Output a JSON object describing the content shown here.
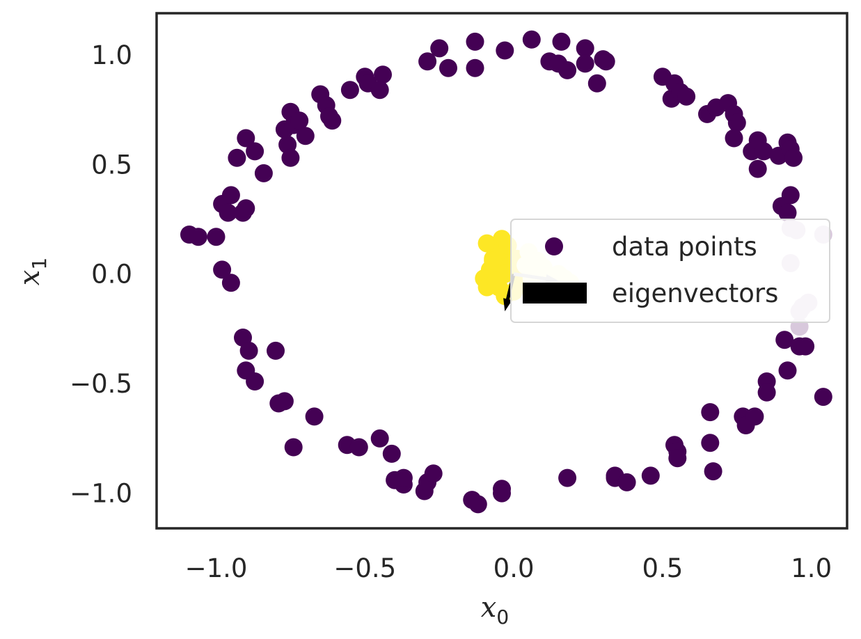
{
  "chart_data": {
    "type": "scatter",
    "title": "",
    "xlabel": "x",
    "xlabel_sub": "0",
    "ylabel": "x",
    "ylabel_sub": "1",
    "xlim": [
      -1.2,
      1.12
    ],
    "ylim": [
      -1.16,
      1.19
    ],
    "x_ticks": [
      -1.0,
      -0.5,
      0.0,
      0.5,
      1.0
    ],
    "x_tick_labels": [
      "−1.0",
      "−0.5",
      "0.0",
      "0.5",
      "1.0"
    ],
    "y_ticks": [
      -1.0,
      -0.5,
      0.0,
      0.5,
      1.0
    ],
    "y_tick_labels": [
      "−1.0",
      "−0.5",
      "0.0",
      "0.5",
      "1.0"
    ],
    "grid": false,
    "legend": {
      "placement": "center-right",
      "entries": [
        "data points",
        "eigenvectors"
      ]
    },
    "colors": {
      "outer": "#440154",
      "core": "#fde725",
      "pale_yellow": "#fffbd0",
      "pale_purple": "#d8c8dc",
      "axes": "#262626",
      "arrow": "#000000",
      "arrow_light": "#c8c8c8"
    },
    "series": [
      {
        "group": "outer",
        "points": [
          [
            -1.09,
            0.18
          ],
          [
            -1.06,
            0.17
          ],
          [
            -1.0,
            0.17
          ],
          [
            -0.98,
            0.02
          ],
          [
            -0.95,
            -0.04
          ],
          [
            -0.98,
            0.32
          ],
          [
            -0.95,
            0.36
          ],
          [
            -0.96,
            0.28
          ],
          [
            -0.91,
            0.28
          ],
          [
            -0.9,
            0.3
          ],
          [
            -0.93,
            0.53
          ],
          [
            -0.9,
            0.62
          ],
          [
            -0.87,
            0.56
          ],
          [
            -0.84,
            0.46
          ],
          [
            -0.77,
            0.66
          ],
          [
            -0.76,
            0.59
          ],
          [
            -0.75,
            0.53
          ],
          [
            -0.75,
            0.74
          ],
          [
            -0.74,
            0.68
          ],
          [
            -0.72,
            0.7
          ],
          [
            -0.7,
            0.63
          ],
          [
            -0.65,
            0.82
          ],
          [
            -0.63,
            0.77
          ],
          [
            -0.62,
            0.72
          ],
          [
            -0.61,
            0.7
          ],
          [
            -0.55,
            0.84
          ],
          [
            -0.5,
            0.9
          ],
          [
            -0.49,
            0.87
          ],
          [
            -0.44,
            0.91
          ],
          [
            -0.45,
            0.84
          ],
          [
            -0.29,
            0.97
          ],
          [
            -0.25,
            1.03
          ],
          [
            -0.22,
            0.94
          ],
          [
            -0.13,
            1.06
          ],
          [
            -0.13,
            0.94
          ],
          [
            -0.03,
            1.02
          ],
          [
            0.06,
            1.07
          ],
          [
            0.12,
            0.97
          ],
          [
            0.15,
            0.96
          ],
          [
            0.16,
            1.06
          ],
          [
            0.18,
            0.93
          ],
          [
            0.24,
            1.03
          ],
          [
            0.24,
            0.96
          ],
          [
            0.28,
            0.87
          ],
          [
            0.3,
            0.98
          ],
          [
            0.31,
            0.97
          ],
          [
            0.5,
            0.9
          ],
          [
            0.53,
            0.8
          ],
          [
            0.54,
            0.87
          ],
          [
            0.56,
            0.83
          ],
          [
            0.58,
            0.81
          ],
          [
            0.65,
            0.73
          ],
          [
            0.68,
            0.76
          ],
          [
            0.72,
            0.78
          ],
          [
            0.74,
            0.73
          ],
          [
            0.75,
            0.69
          ],
          [
            0.74,
            0.62
          ],
          [
            0.8,
            0.56
          ],
          [
            0.82,
            0.61
          ],
          [
            0.84,
            0.56
          ],
          [
            0.82,
            0.48
          ],
          [
            0.89,
            0.54
          ],
          [
            0.92,
            0.6
          ],
          [
            0.93,
            0.57
          ],
          [
            0.94,
            0.53
          ],
          [
            0.93,
            0.36
          ],
          [
            0.9,
            0.31
          ],
          [
            0.92,
            0.28
          ],
          [
            -0.91,
            -0.29
          ],
          [
            -0.89,
            -0.35
          ],
          [
            -0.9,
            -0.44
          ],
          [
            -0.87,
            -0.49
          ],
          [
            -0.8,
            -0.35
          ],
          [
            -0.79,
            -0.59
          ],
          [
            -0.77,
            -0.58
          ],
          [
            -0.74,
            -0.79
          ],
          [
            -0.67,
            -0.65
          ],
          [
            -0.56,
            -0.78
          ],
          [
            -0.52,
            -0.79
          ],
          [
            -0.45,
            -0.75
          ],
          [
            -0.41,
            -0.82
          ],
          [
            -0.4,
            -0.94
          ],
          [
            -0.37,
            -0.96
          ],
          [
            -0.37,
            -0.93
          ],
          [
            -0.3,
            -0.99
          ],
          [
            -0.29,
            -0.95
          ],
          [
            -0.27,
            -0.91
          ],
          [
            -0.14,
            -1.03
          ],
          [
            -0.12,
            -1.05
          ],
          [
            -0.04,
            -0.98
          ],
          [
            -0.04,
            -1.0
          ],
          [
            0.18,
            -0.93
          ],
          [
            0.34,
            -0.92
          ],
          [
            0.34,
            -0.93
          ],
          [
            0.38,
            -0.95
          ],
          [
            0.46,
            -0.92
          ],
          [
            0.54,
            -0.78
          ],
          [
            0.55,
            -0.81
          ],
          [
            0.55,
            -0.84
          ],
          [
            0.66,
            -0.63
          ],
          [
            0.66,
            -0.77
          ],
          [
            0.67,
            -0.9
          ],
          [
            0.77,
            -0.65
          ],
          [
            0.78,
            -0.69
          ],
          [
            0.81,
            -0.65
          ],
          [
            0.85,
            -0.49
          ],
          [
            0.85,
            -0.54
          ],
          [
            0.91,
            -0.3
          ],
          [
            0.92,
            -0.44
          ],
          [
            0.96,
            -0.33
          ],
          [
            0.98,
            -0.33
          ],
          [
            1.04,
            -0.56
          ]
        ]
      },
      {
        "group": "core",
        "points": [
          [
            -0.09,
            0.14
          ],
          [
            -0.04,
            0.16
          ],
          [
            -0.05,
            0.1
          ],
          [
            -0.07,
            0.07
          ],
          [
            -0.06,
            0.03
          ],
          [
            -0.08,
            0.02
          ],
          [
            -0.1,
            -0.02
          ],
          [
            -0.09,
            -0.06
          ],
          [
            -0.05,
            -0.06
          ],
          [
            -0.03,
            -0.1
          ],
          [
            -0.02,
            0.05
          ],
          [
            -0.03,
            0.0
          ],
          [
            0.0,
            -0.08
          ],
          [
            -0.06,
            -0.03
          ],
          [
            -0.04,
            0.11
          ],
          [
            0.01,
            0.07
          ],
          [
            0.02,
            -0.03
          ],
          [
            -0.02,
            0.13
          ],
          [
            0.0,
            0.02
          ],
          [
            -0.07,
            0.06
          ]
        ]
      },
      {
        "group": "pale_yellow",
        "points": [
          [
            0.05,
            0.1
          ],
          [
            0.08,
            0.06
          ],
          [
            0.1,
            0.03
          ],
          [
            0.13,
            -0.01
          ],
          [
            0.15,
            0.0
          ],
          [
            0.17,
            -0.02
          ],
          [
            0.19,
            -0.04
          ],
          [
            0.04,
            0.04
          ],
          [
            0.06,
            -0.02
          ],
          [
            0.09,
            0.02
          ]
        ]
      },
      {
        "group": "pale_purple",
        "points": [
          [
            0.93,
            0.21
          ],
          [
            0.95,
            0.2
          ],
          [
            1.04,
            0.18
          ],
          [
            0.93,
            0.05
          ],
          [
            0.96,
            -0.17
          ],
          [
            0.97,
            -0.15
          ],
          [
            0.99,
            -0.13
          ],
          [
            0.96,
            -0.24
          ]
        ]
      }
    ],
    "eigenvectors": [
      {
        "from": [
          0.0,
          0.0
        ],
        "to": [
          -0.03,
          -0.17
        ],
        "color": "arrow"
      },
      {
        "from": [
          0.0,
          0.0
        ],
        "to": [
          0.15,
          -0.03
        ],
        "color": "arrow_light"
      }
    ]
  }
}
